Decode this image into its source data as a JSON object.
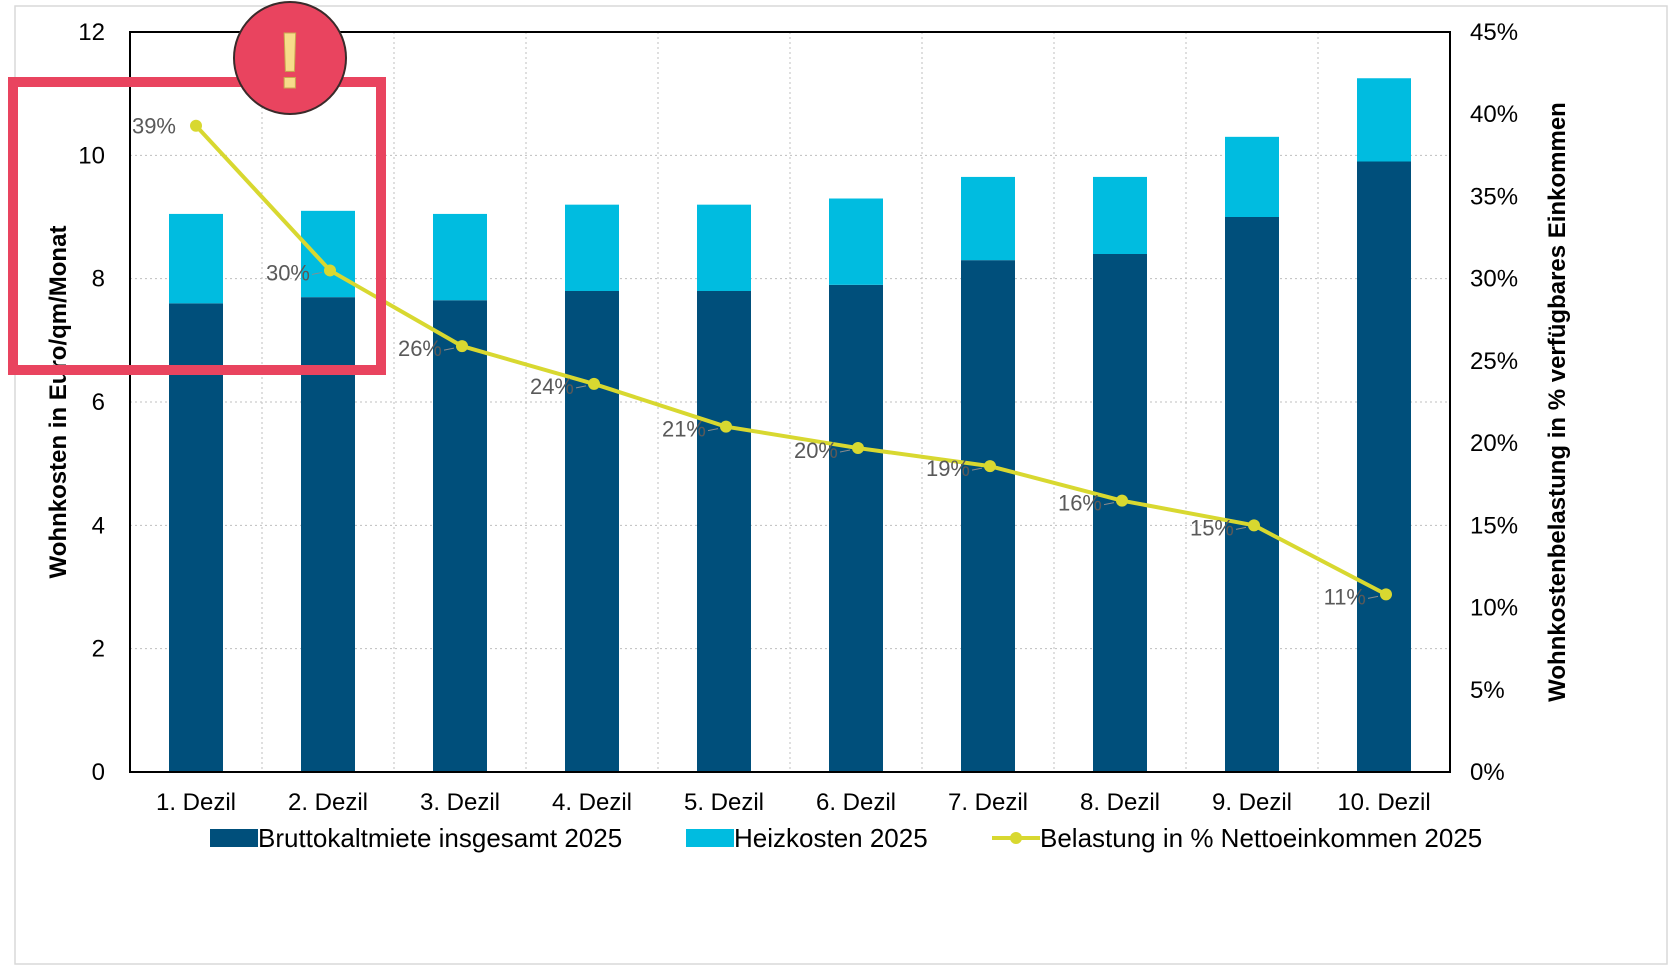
{
  "chart_data": {
    "type": "bar",
    "stacked": true,
    "categories": [
      "1. Dezil",
      "2. Dezil",
      "3. Dezil",
      "4. Dezil",
      "5. Dezil",
      "6. Dezil",
      "7. Dezil",
      "8. Dezil",
      "9. Dezil",
      "10. Dezil"
    ],
    "series": [
      {
        "name": "Bruttokaltmiete insgesamt 2025",
        "type": "bar",
        "axis": "left",
        "color": "#004f7b",
        "values": [
          7.6,
          7.7,
          7.65,
          7.8,
          7.8,
          7.9,
          8.3,
          8.4,
          9.0,
          9.9
        ]
      },
      {
        "name": "Heizkosten 2025",
        "type": "bar",
        "axis": "left",
        "color": "#00bce0",
        "values": [
          1.45,
          1.4,
          1.4,
          1.4,
          1.4,
          1.4,
          1.35,
          1.25,
          1.3,
          1.35
        ]
      },
      {
        "name": "Belastung in % Nettoeinkommen 2025",
        "type": "line",
        "axis": "right",
        "color": "#d8d830",
        "values": [
          39.3,
          30.5,
          25.9,
          23.6,
          21.0,
          19.7,
          18.6,
          16.5,
          15.0,
          10.8
        ],
        "labels": [
          "39%",
          "30%",
          "26%",
          "24%",
          "21%",
          "20%",
          "19%",
          "16%",
          "15%",
          "11%"
        ]
      }
    ],
    "y_left": {
      "label": "Wohnkosten in Euro/qm/Monat",
      "range": [
        0,
        12
      ],
      "ticks": [
        "0",
        "2",
        "4",
        "6",
        "8",
        "10",
        "12"
      ]
    },
    "y_right": {
      "label": "Wohnkostenbelastung in % verfügbares Einkommen",
      "range": [
        0,
        45
      ],
      "ticks": [
        "0%",
        "5%",
        "10%",
        "15%",
        "20%",
        "25%",
        "30%",
        "35%",
        "40%",
        "45%"
      ]
    },
    "grid": true,
    "legend_position": "bottom"
  },
  "annotation": {
    "symbol": "!",
    "badge_color": "#e9445f",
    "box_color": "#e9445f"
  }
}
